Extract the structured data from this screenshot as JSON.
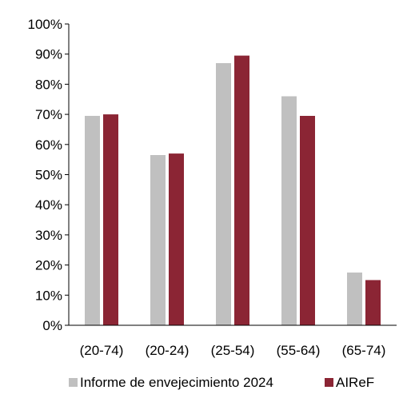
{
  "chart_data": {
    "type": "bar",
    "categories": [
      "(20-74)",
      "(20-24)",
      "(25-54)",
      "(55-64)",
      "(65-74)"
    ],
    "series": [
      {
        "name": "Informe de envejecimiento 2024",
        "values": [
          69.5,
          56.5,
          87,
          76,
          17.5
        ],
        "color": "#c0c0c0"
      },
      {
        "name": "AIReF",
        "values": [
          70,
          57,
          89.5,
          69.5,
          15
        ],
        "color": "#8b2534"
      }
    ],
    "y_ticks": [
      "0%",
      "10%",
      "20%",
      "30%",
      "40%",
      "50%",
      "60%",
      "70%",
      "80%",
      "90%",
      "100%"
    ],
    "ylim": [
      0,
      100
    ],
    "grid": false,
    "legend_position": "bottom",
    "title": "",
    "xlabel": "",
    "ylabel": ""
  }
}
